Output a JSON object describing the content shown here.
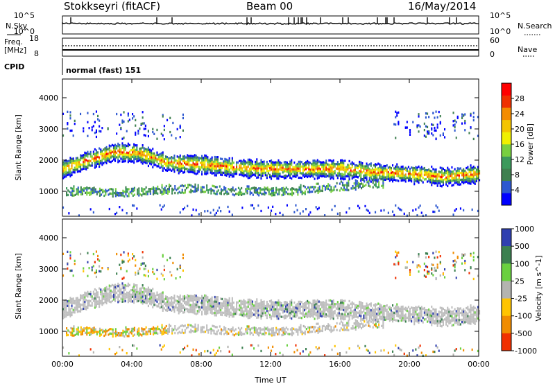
{
  "header": {
    "station": "Stokkseyri (fitACF)",
    "beam": "Beam 00",
    "date": "16/May/2014"
  },
  "nsky_panel": {
    "label": "N.Sky",
    "left_ticks": [
      "10^5",
      "10^0"
    ],
    "right_label": "N.Search",
    "right_ticks": [
      "10^5",
      "10^0"
    ]
  },
  "freq_panel": {
    "label_line1": "Freq.",
    "label_line2": "[MHz]",
    "left_ticks": [
      "18",
      "8"
    ],
    "right_label": "Nave",
    "right_ticks": [
      "60",
      "0"
    ]
  },
  "cpid": {
    "label": "CPID",
    "mode": "normal (fast) 151"
  },
  "colors": {
    "power": [
      "#0000ff",
      "#2d58d0",
      "#3f8050",
      "#3c9a5c",
      "#78d040",
      "#f0f000",
      "#f4c400",
      "#f48c00",
      "#f03000",
      "#ff0000"
    ],
    "velocity": [
      "#3040b0",
      "#3c8050",
      "#6ad040",
      "#b4b4b0",
      "#ffc400",
      "#f08c00",
      "#f03000"
    ],
    "ground_scatter": "#bebebe"
  },
  "chart_data": [
    {
      "type": "heatmap",
      "quantity": "Power",
      "xlabel": "",
      "ylabel": "Slant Range [km]",
      "xlim": [
        "00:00",
        "24:00"
      ],
      "ylim": [
        200,
        4600
      ],
      "yticks": [
        1000,
        2000,
        3000,
        4000
      ],
      "colorbar": {
        "label": "Power [dB]",
        "range": [
          0,
          32
        ],
        "tick_labels": [
          "4",
          "8",
          "12",
          "16",
          "20",
          "24",
          "28"
        ],
        "tick_values": [
          4,
          8,
          12,
          16,
          20,
          24,
          28
        ]
      },
      "main_echo_band_center_km": [
        {
          "t": 0.0,
          "r": 1750
        },
        {
          "t": 1.5,
          "r": 2050
        },
        {
          "t": 3.0,
          "r": 2300
        },
        {
          "t": 4.5,
          "r": 2250
        },
        {
          "t": 6.0,
          "r": 1950
        },
        {
          "t": 8.0,
          "r": 1900
        },
        {
          "t": 10.0,
          "r": 1800
        },
        {
          "t": 12.0,
          "r": 1750
        },
        {
          "t": 14.0,
          "r": 1750
        },
        {
          "t": 16.0,
          "r": 1750
        },
        {
          "t": 18.0,
          "r": 1650
        },
        {
          "t": 20.0,
          "r": 1600
        },
        {
          "t": 22.0,
          "r": 1500
        },
        {
          "t": 24.0,
          "r": 1600
        }
      ],
      "lower_echo_band_center_km": [
        {
          "t": 0.5,
          "r": 1050
        },
        {
          "t": 2.0,
          "r": 1050
        },
        {
          "t": 3.0,
          "r": 1000
        },
        {
          "t": 7.5,
          "r": 1150
        },
        {
          "t": 10.0,
          "r": 1050
        },
        {
          "t": 13.0,
          "r": 1050
        },
        {
          "t": 16.0,
          "r": 1200
        },
        {
          "t": 18.0,
          "r": 1300
        }
      ]
    },
    {
      "type": "heatmap",
      "quantity": "Velocity",
      "xlabel": "Time UT",
      "ylabel": "Slant Range [km]",
      "xlim": [
        "00:00",
        "24:00"
      ],
      "ylim": [
        200,
        4600
      ],
      "yticks": [
        1000,
        2000,
        3000,
        4000
      ],
      "xtick_labels": [
        "00:00",
        "04:00",
        "08:00",
        "12:00",
        "16:00",
        "20:00",
        "00:00"
      ],
      "xtick_hours": [
        0,
        4,
        8,
        12,
        16,
        20,
        24
      ],
      "colorbar": {
        "label": "Velocity [m s^-1]",
        "tick_labels": [
          "1000",
          "500",
          "100",
          "25",
          "-25",
          "-100",
          "-500",
          "-1000"
        ]
      }
    }
  ]
}
